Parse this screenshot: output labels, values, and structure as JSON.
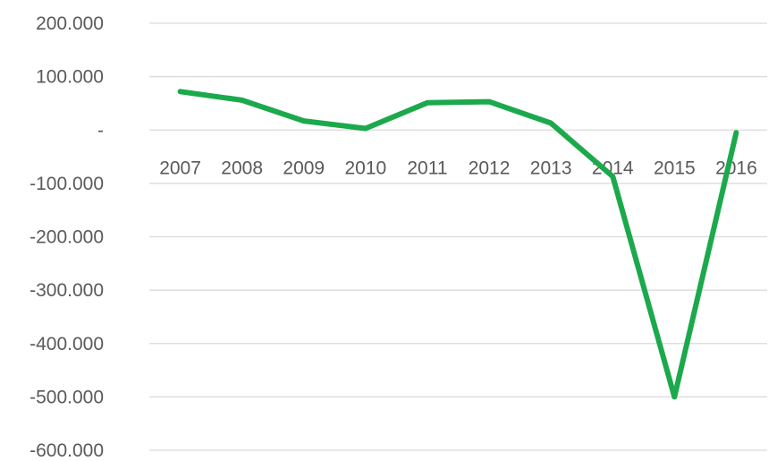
{
  "chart_data": {
    "type": "line",
    "title": "",
    "xlabel": "",
    "ylabel": "",
    "categories": [
      "2007",
      "2008",
      "2009",
      "2010",
      "2011",
      "2012",
      "2013",
      "2014",
      "2015",
      "2016"
    ],
    "series": [
      {
        "values": [
          72000,
          56000,
          17000,
          3000,
          51000,
          53000,
          13000,
          -87000,
          -500000,
          -5000
        ],
        "color": "#1ba94c"
      }
    ],
    "ylim": [
      -600000,
      200000
    ],
    "yticks": [
      {
        "value": 200000,
        "label": "200.000"
      },
      {
        "value": 100000,
        "label": "100.000"
      },
      {
        "value": 0,
        "label": "-"
      },
      {
        "value": -100000,
        "label": "-100.000"
      },
      {
        "value": -200000,
        "label": "-200.000"
      },
      {
        "value": -300000,
        "label": "-300.000"
      },
      {
        "value": -400000,
        "label": "-400.000"
      },
      {
        "value": -500000,
        "label": "-500.000"
      },
      {
        "value": -600000,
        "label": "-600.000"
      }
    ],
    "grid": true,
    "legend": "none",
    "x_labels_position": "below zero line"
  }
}
